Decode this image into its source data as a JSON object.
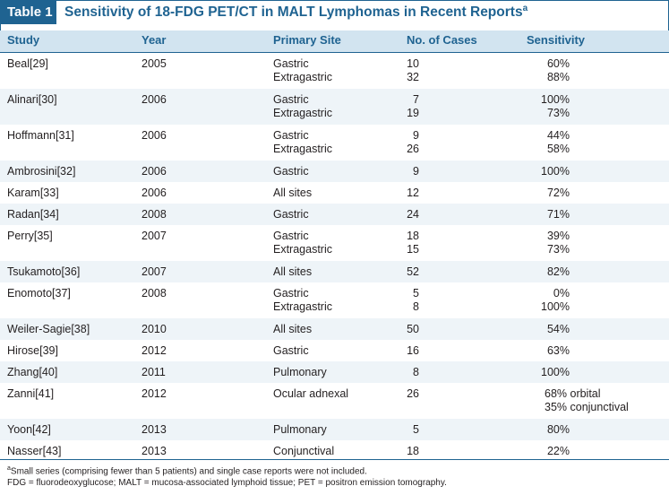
{
  "table": {
    "label": "Table 1",
    "title": "Sensitivity of 18-FDG PET/CT in MALT Lymphomas in Recent Reports",
    "title_sup": "a",
    "columns": [
      "Study",
      "Year",
      "Primary Site",
      "No. of Cases",
      "Sensitivity"
    ],
    "rows": [
      {
        "study": "Beal[29]",
        "year": "2005",
        "sites": [
          "Gastric",
          "Extragastric"
        ],
        "cases": [
          "10",
          "32"
        ],
        "sensitivity": [
          "60%",
          "88%"
        ]
      },
      {
        "study": "Alinari[30]",
        "year": "2006",
        "sites": [
          "Gastric",
          "Extragastric"
        ],
        "cases": [
          "7",
          "19"
        ],
        "sensitivity": [
          "100%",
          "73%"
        ]
      },
      {
        "study": "Hoffmann[31]",
        "year": "2006",
        "sites": [
          "Gastric",
          "Extragastric"
        ],
        "cases": [
          "9",
          "26"
        ],
        "sensitivity": [
          "44%",
          "58%"
        ]
      },
      {
        "study": "Ambrosini[32]",
        "year": "2006",
        "sites": [
          "Gastric"
        ],
        "cases": [
          "9"
        ],
        "sensitivity": [
          "100%"
        ]
      },
      {
        "study": "Karam[33]",
        "year": "2006",
        "sites": [
          "All sites"
        ],
        "cases": [
          "12"
        ],
        "sensitivity": [
          "72%"
        ]
      },
      {
        "study": "Radan[34]",
        "year": "2008",
        "sites": [
          "Gastric"
        ],
        "cases": [
          "24"
        ],
        "sensitivity": [
          "71%"
        ]
      },
      {
        "study": "Perry[35]",
        "year": "2007",
        "sites": [
          "Gastric",
          "Extragastric"
        ],
        "cases": [
          "18",
          "15"
        ],
        "sensitivity": [
          "39%",
          "73%"
        ]
      },
      {
        "study": "Tsukamoto[36]",
        "year": "2007",
        "sites": [
          "All sites"
        ],
        "cases": [
          "52"
        ],
        "sensitivity": [
          "82%"
        ]
      },
      {
        "study": "Enomoto[37]",
        "year": "2008",
        "sites": [
          "Gastric",
          "Extragastric"
        ],
        "cases": [
          "5",
          "8"
        ],
        "sensitivity": [
          "0%",
          "100%"
        ]
      },
      {
        "study": "Weiler-Sagie[38]",
        "year": "2010",
        "sites": [
          "All sites"
        ],
        "cases": [
          "50"
        ],
        "sensitivity": [
          "54%"
        ]
      },
      {
        "study": "Hirose[39]",
        "year": "2012",
        "sites": [
          "Gastric"
        ],
        "cases": [
          "16"
        ],
        "sensitivity": [
          "63%"
        ]
      },
      {
        "study": "Zhang[40]",
        "year": "2011",
        "sites": [
          "Pulmonary"
        ],
        "cases": [
          "8"
        ],
        "sensitivity": [
          "100%"
        ]
      },
      {
        "study": "Zanni[41]",
        "year": "2012",
        "sites": [
          "Ocular adnexal"
        ],
        "cases": [
          "26"
        ],
        "sensitivity": [
          "68% orbital",
          "35% conjunctival"
        ]
      },
      {
        "study": "Yoon[42]",
        "year": "2013",
        "sites": [
          "Pulmonary"
        ],
        "cases": [
          "5"
        ],
        "sensitivity": [
          "80%"
        ]
      },
      {
        "study": "Nasser[43]",
        "year": "2013",
        "sites": [
          "Conjunctival"
        ],
        "cases": [
          "18"
        ],
        "sensitivity": [
          "22%"
        ]
      }
    ],
    "footnote_a_marker": "a",
    "footnote_a": "Small series (comprising fewer than 5 patients) and single case reports were not included.",
    "abbreviations": "FDG = fluorodeoxyglucose; MALT = mucosa-associated lymphoid tissue; PET = positron emission tomography."
  },
  "colors": {
    "accent": "#1f6391",
    "header_bg": "#d2e4f0",
    "alt_row_bg": "#eef4f8"
  }
}
